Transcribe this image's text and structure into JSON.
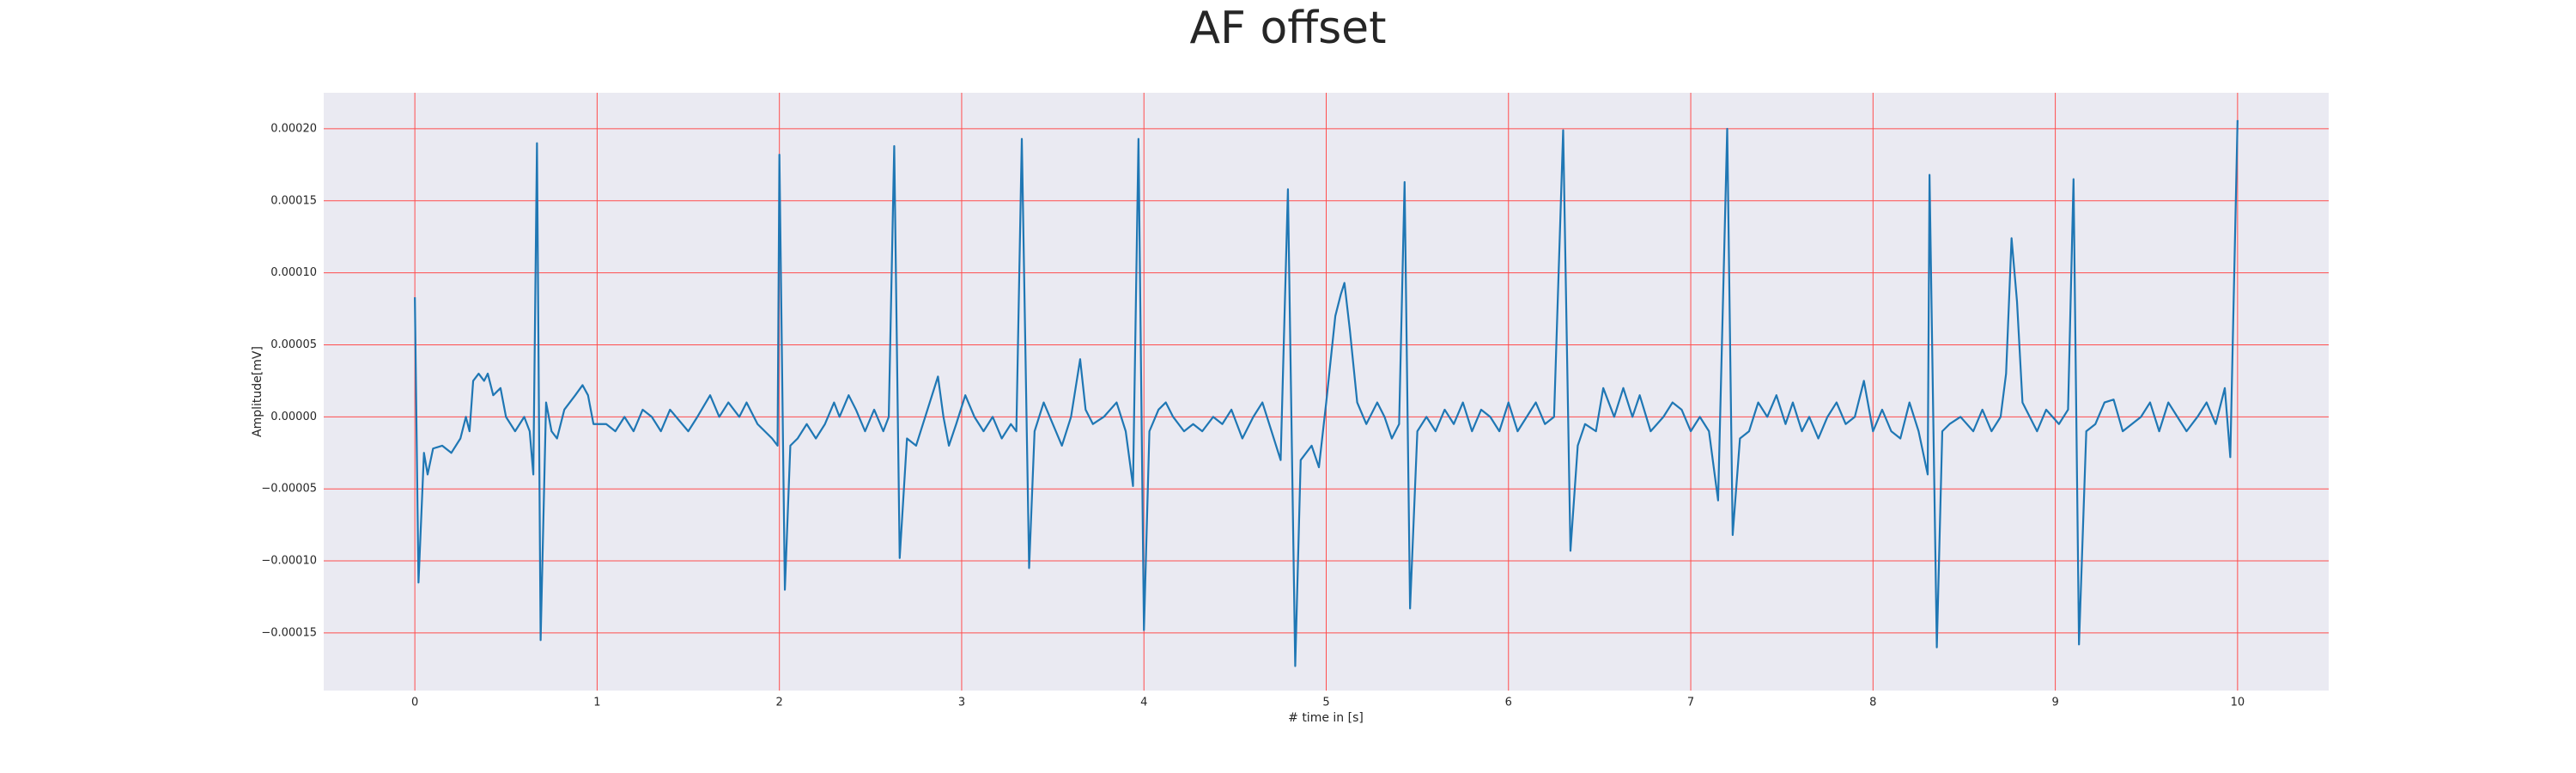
{
  "chart_data": {
    "type": "line",
    "title": "AF offset",
    "x_label": "# time in [s]",
    "y_label": "Amplitude[mV]",
    "x": [
      0.0,
      0.02,
      0.05,
      0.07,
      0.1,
      0.15,
      0.2,
      0.25,
      0.28,
      0.3,
      0.32,
      0.35,
      0.38,
      0.4,
      0.43,
      0.47,
      0.5,
      0.55,
      0.6,
      0.63,
      0.65,
      0.67,
      0.69,
      0.72,
      0.75,
      0.78,
      0.82,
      0.88,
      0.92,
      0.95,
      0.98,
      1.05,
      1.1,
      1.15,
      1.2,
      1.25,
      1.3,
      1.35,
      1.4,
      1.5,
      1.55,
      1.62,
      1.67,
      1.72,
      1.78,
      1.82,
      1.88,
      1.92,
      1.96,
      1.99,
      2.0,
      2.03,
      2.06,
      2.1,
      2.15,
      2.2,
      2.25,
      2.3,
      2.33,
      2.38,
      2.42,
      2.47,
      2.52,
      2.57,
      2.6,
      2.63,
      2.66,
      2.7,
      2.75,
      2.8,
      2.87,
      2.9,
      2.93,
      2.97,
      3.02,
      3.07,
      3.12,
      3.17,
      3.22,
      3.27,
      3.3,
      3.33,
      3.37,
      3.4,
      3.45,
      3.5,
      3.55,
      3.6,
      3.65,
      3.68,
      3.72,
      3.78,
      3.85,
      3.9,
      3.94,
      3.97,
      4.0,
      4.03,
      4.08,
      4.12,
      4.16,
      4.22,
      4.27,
      4.32,
      4.38,
      4.43,
      4.48,
      4.54,
      4.6,
      4.65,
      4.7,
      4.75,
      4.79,
      4.83,
      4.86,
      4.92,
      4.96,
      5.0,
      5.05,
      5.08,
      5.1,
      5.13,
      5.17,
      5.22,
      5.28,
      5.32,
      5.36,
      5.4,
      5.43,
      5.46,
      5.5,
      5.55,
      5.6,
      5.65,
      5.7,
      5.75,
      5.8,
      5.85,
      5.9,
      5.95,
      6.0,
      6.05,
      6.1,
      6.15,
      6.2,
      6.25,
      6.3,
      6.34,
      6.38,
      6.42,
      6.48,
      6.52,
      6.58,
      6.63,
      6.68,
      6.72,
      6.78,
      6.85,
      6.9,
      6.95,
      7.0,
      7.05,
      7.1,
      7.15,
      7.2,
      7.23,
      7.27,
      7.32,
      7.37,
      7.42,
      7.47,
      7.52,
      7.56,
      7.61,
      7.65,
      7.7,
      7.75,
      7.8,
      7.85,
      7.9,
      7.95,
      8.0,
      8.05,
      8.1,
      8.15,
      8.2,
      8.25,
      8.3,
      8.31,
      8.35,
      8.38,
      8.42,
      8.48,
      8.55,
      8.6,
      8.65,
      8.7,
      8.73,
      8.76,
      8.79,
      8.82,
      8.86,
      8.9,
      8.95,
      9.02,
      9.07,
      9.1,
      9.13,
      9.17,
      9.22,
      9.27,
      9.32,
      9.37,
      9.42,
      9.47,
      9.52,
      9.57,
      9.62,
      9.67,
      9.72,
      9.78,
      9.83,
      9.88,
      9.93,
      9.96,
      10.0
    ],
    "series": [
      {
        "color": "#1f77b4",
        "values": [
          8.3e-05,
          -0.000115,
          -2.5e-05,
          -4e-05,
          -2.2e-05,
          -2e-05,
          -2.5e-05,
          -1.5e-05,
          0,
          -1e-05,
          2.5e-05,
          3e-05,
          2.5e-05,
          3e-05,
          1.5e-05,
          2e-05,
          0,
          -1e-05,
          0,
          -1e-05,
          -4e-05,
          0.00019,
          -0.000155,
          1e-05,
          -1e-05,
          -1.5e-05,
          5e-06,
          1.5e-05,
          2.2e-05,
          1.5e-05,
          -5e-06,
          -5e-06,
          -1e-05,
          0,
          -1e-05,
          5e-06,
          0,
          -1e-05,
          5e-06,
          -1e-05,
          0,
          1.5e-05,
          0,
          1e-05,
          0,
          1e-05,
          -5e-06,
          -1e-05,
          -1.5e-05,
          -2e-05,
          0.000182,
          -0.00012,
          -2e-05,
          -1.5e-05,
          -5e-06,
          -1.5e-05,
          -5e-06,
          1e-05,
          0,
          1.5e-05,
          5e-06,
          -1e-05,
          5e-06,
          -1e-05,
          0,
          0.000188,
          -9.8e-05,
          -1.5e-05,
          -2e-05,
          0,
          2.8e-05,
          0,
          -2e-05,
          -5e-06,
          1.5e-05,
          0,
          -1e-05,
          0,
          -1.5e-05,
          -5e-06,
          -1e-05,
          0.000193,
          -0.000105,
          -1e-05,
          1e-05,
          -5e-06,
          -2e-05,
          0,
          4e-05,
          5e-06,
          -5e-06,
          0,
          1e-05,
          -1e-05,
          -4.8e-05,
          0.000193,
          -0.000148,
          -1e-05,
          5e-06,
          1e-05,
          0,
          -1e-05,
          -5e-06,
          -1e-05,
          0,
          -5e-06,
          5e-06,
          -1.5e-05,
          0,
          1e-05,
          -1e-05,
          -3e-05,
          0.000158,
          -0.000173,
          -3e-05,
          -2e-05,
          -3.5e-05,
          1e-05,
          7e-05,
          8.5e-05,
          9.3e-05,
          6e-05,
          1e-05,
          -5e-06,
          1e-05,
          0,
          -1.5e-05,
          -5e-06,
          0.000163,
          -0.000133,
          -1e-05,
          0,
          -1e-05,
          5e-06,
          -5e-06,
          1e-05,
          -1e-05,
          5e-06,
          0,
          -1e-05,
          1e-05,
          -1e-05,
          0,
          1e-05,
          -5e-06,
          0,
          0.000199,
          -9.3e-05,
          -2e-05,
          -5e-06,
          -1e-05,
          2e-05,
          0,
          2e-05,
          0,
          1.5e-05,
          -1e-05,
          0,
          1e-05,
          5e-06,
          -1e-05,
          0,
          -1e-05,
          -5.8e-05,
          0.0002,
          -8.2e-05,
          -1.5e-05,
          -1e-05,
          1e-05,
          0,
          1.5e-05,
          -5e-06,
          1e-05,
          -1e-05,
          0,
          -1.5e-05,
          0,
          1e-05,
          -5e-06,
          0,
          2.5e-05,
          -1e-05,
          5e-06,
          -1e-05,
          -1.5e-05,
          1e-05,
          -1e-05,
          -4e-05,
          0.000168,
          -0.00016,
          -1e-05,
          -5e-06,
          0,
          -1e-05,
          5e-06,
          -1e-05,
          0,
          3e-05,
          0.000124,
          8e-05,
          1e-05,
          0,
          -1e-05,
          5e-06,
          -5e-06,
          5e-06,
          0.000165,
          -0.000158,
          -1e-05,
          -5e-06,
          1e-05,
          1.2e-05,
          -1e-05,
          -5e-06,
          0,
          1e-05,
          -1e-05,
          1e-05,
          0,
          -1e-05,
          0,
          1e-05,
          -5e-06,
          2e-05,
          -2.8e-05,
          0.000206
        ]
      }
    ],
    "xlim": [
      -0.5,
      10.5
    ],
    "xticks": [
      0,
      1,
      2,
      3,
      4,
      5,
      6,
      7,
      8,
      9,
      10
    ],
    "ylim": [
      -0.00019,
      0.000225
    ],
    "yticks": [
      {
        "value": -0.00015,
        "label": "−0.00015"
      },
      {
        "value": -0.0001,
        "label": "−0.00010"
      },
      {
        "value": -5e-05,
        "label": "−0.00005"
      },
      {
        "value": 0,
        "label": "0.00000"
      },
      {
        "value": 5e-05,
        "label": "0.00005"
      },
      {
        "value": 0.0001,
        "label": "0.00010"
      },
      {
        "value": 0.00015,
        "label": "0.00015"
      },
      {
        "value": 0.0002,
        "label": "0.00020"
      }
    ],
    "grid": true,
    "grid_color": "#ff4d4d",
    "background": "#eaeaf2"
  }
}
